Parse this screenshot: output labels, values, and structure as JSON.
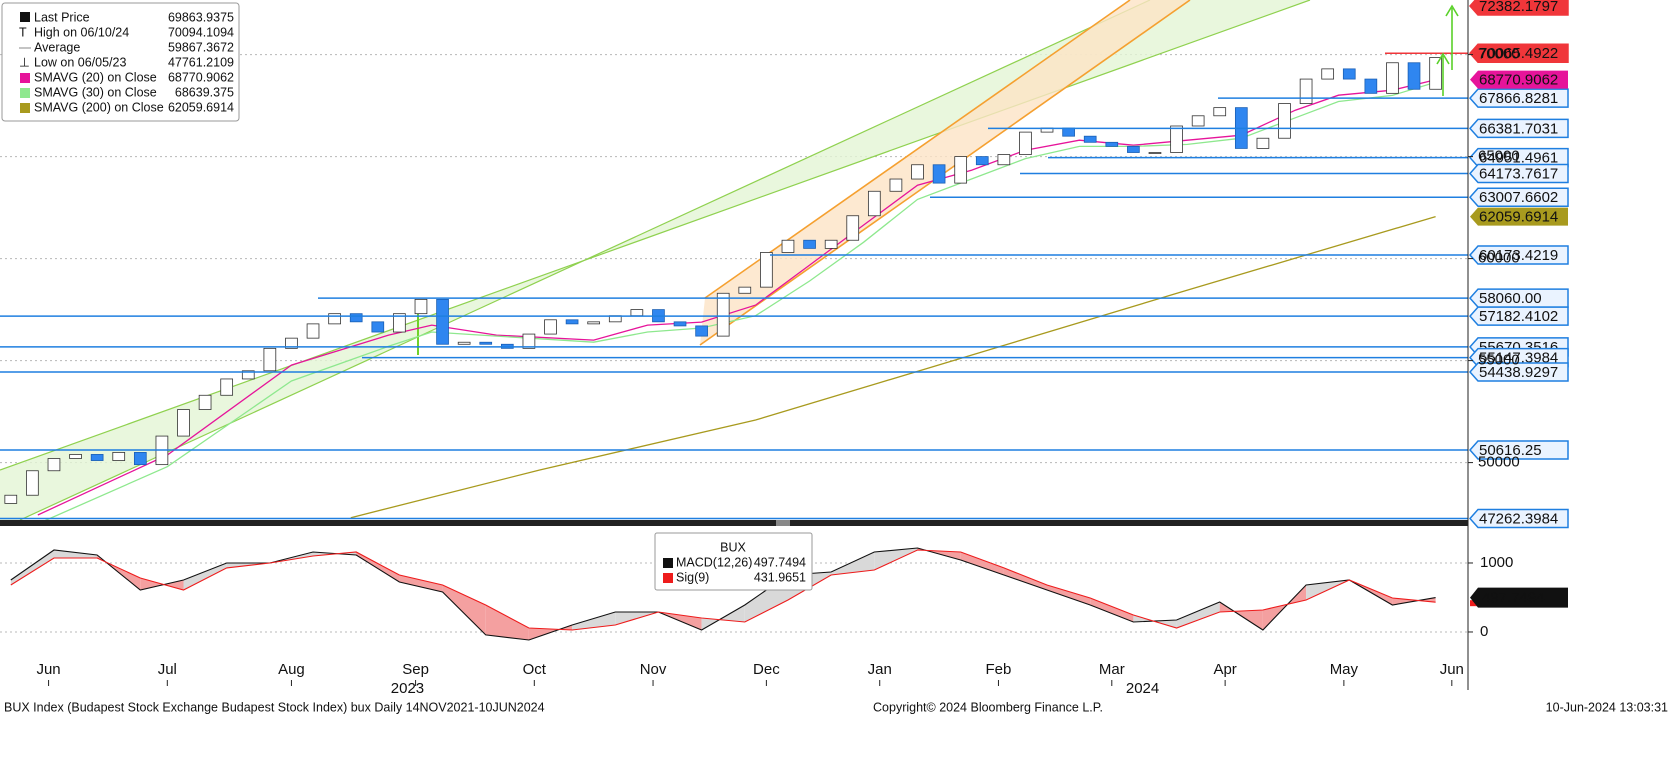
{
  "chart_data": [
    {
      "type": "candlestick",
      "stats": [
        {
          "name": "Last Price",
          "value": 69863.9375
        },
        {
          "name": "High on 06/10/24",
          "value": 70094.1094
        },
        {
          "name": "Average",
          "value": 59867.3672
        },
        {
          "name": "Low on 06/05/23",
          "value": 47761.2109
        }
      ],
      "x": [
        2,
        6,
        10,
        14,
        18,
        22,
        26,
        30,
        34,
        38,
        42,
        46,
        50,
        54,
        58,
        62,
        66,
        70,
        74,
        78,
        82,
        86,
        90,
        94,
        98,
        102,
        106,
        110,
        114,
        118,
        122,
        126,
        130,
        134,
        138,
        142,
        146,
        150,
        154,
        158,
        162,
        166,
        170,
        174,
        178,
        182,
        186,
        190,
        194,
        198,
        202,
        206,
        210,
        214,
        218,
        222,
        226,
        230,
        234,
        238,
        242,
        246,
        250,
        254,
        258,
        262,
        266
      ],
      "open": [
        48000,
        48400,
        49600,
        50200,
        50400,
        50100,
        50500,
        49900,
        51300,
        52600,
        53300,
        54100,
        54500,
        55600,
        56100,
        56800,
        57300,
        56900,
        56400,
        57300,
        58000,
        55800,
        55900,
        55800,
        55600,
        56300,
        57000,
        56800,
        56900,
        57200,
        57500,
        56900,
        56700,
        56200,
        58300,
        58600,
        60300,
        60900,
        60500,
        60900,
        62100,
        63300,
        63900,
        64600,
        63700,
        65000,
        64600,
        65100,
        66200,
        66400,
        66000,
        65700,
        65500,
        65200,
        65200,
        66500,
        67000,
        67400,
        65400,
        65900,
        67600,
        68800,
        69300,
        68800,
        68100,
        69600,
        68300
      ],
      "close": [
        48400,
        49600,
        50200,
        50400,
        50100,
        50500,
        49900,
        51300,
        52600,
        53300,
        54100,
        54500,
        55600,
        56100,
        56800,
        57300,
        56900,
        56400,
        57300,
        58000,
        55800,
        55900,
        55800,
        55600,
        56300,
        57000,
        56800,
        56900,
        57200,
        57500,
        56900,
        56700,
        56200,
        58300,
        58600,
        60300,
        60900,
        60500,
        60900,
        62100,
        63300,
        63900,
        64600,
        63700,
        65000,
        64600,
        65100,
        66200,
        66400,
        66000,
        65700,
        65500,
        65200,
        65200,
        66500,
        67000,
        67400,
        65400,
        65900,
        67600,
        68800,
        69300,
        68800,
        68100,
        69600,
        68300,
        69860
      ],
      "up_color": "#ffffff",
      "down_color": "#2f86f0",
      "series": [
        {
          "name": "SMAVG (20)  on Close",
          "color": "#e6149a",
          "legend_value": 68770.9062,
          "x": [
            7,
            31,
            54,
            72,
            80,
            92,
            110,
            120,
            130,
            140,
            150,
            160,
            170,
            180,
            190,
            200,
            210,
            220,
            230,
            240,
            248,
            258,
            266
          ],
          "values": [
            47431,
            50371,
            54780,
            56250,
            56740,
            56250,
            56005,
            56740,
            56887,
            57720,
            59680,
            61640,
            63600,
            64335,
            65315,
            65805,
            65560,
            65805,
            66050,
            67275,
            68010,
            68255,
            68770.9062
          ]
        },
        {
          "name": "SMAVG (30)  on Close",
          "color": "#8ee88e",
          "legend_value": 68639.375,
          "x": [
            7,
            31,
            54,
            72,
            80,
            92,
            110,
            120,
            130,
            140,
            150,
            160,
            170,
            180,
            190,
            200,
            210,
            220,
            230,
            240,
            248,
            258,
            266
          ],
          "values": [
            47000,
            49800,
            54000,
            55700,
            56400,
            56200,
            55900,
            56400,
            56600,
            57200,
            58900,
            60800,
            62900,
            63900,
            64900,
            65500,
            65500,
            65600,
            65900,
            66900,
            67700,
            68000,
            68639.375
          ]
        },
        {
          "name": "SMAVG (200)  on Close",
          "color": "#a89a1e",
          "legend_value": 62059.6914,
          "x": [
            65,
            100,
            140,
            180,
            220,
            266
          ],
          "values": [
            47300,
            49636,
            52086,
            55270,
            58455,
            62059.6914
          ]
        }
      ],
      "levels": [
        {
          "value": 72382.1797,
          "color": "#f0363a"
        },
        {
          "value": 70065.4922,
          "color": "#f0363a"
        },
        {
          "value": 67866.8281,
          "color": "#1f7fe0"
        },
        {
          "value": 66381.7031,
          "color": "#1f7fe0"
        },
        {
          "value": 64951.4961,
          "color": "#1f7fe0"
        },
        {
          "value": 64173.7617,
          "color": "#1f7fe0"
        },
        {
          "value": 63007.6602,
          "color": "#1f7fe0"
        },
        {
          "value": 60173.4219,
          "color": "#1f7fe0"
        },
        {
          "value": 58060,
          "label": "58060.00",
          "color": "#1f7fe0"
        },
        {
          "value": 57182.4102,
          "color": "#1f7fe0"
        },
        {
          "value": 55670.3516,
          "color": "#1f7fe0"
        },
        {
          "value": 55147.3984,
          "color": "#1f7fe0"
        },
        {
          "value": 54438.9297,
          "color": "#1f7fe0"
        },
        {
          "value": 50616.25,
          "color": "#1f7fe0"
        },
        {
          "value": 47262.3984,
          "color": "#1f7fe0"
        }
      ],
      "xlim": [
        0,
        272
      ],
      "ylim": [
        47186,
        72676
      ],
      "yticks": [
        50000,
        55000,
        60000,
        65000,
        70000
      ],
      "xticks": [
        {
          "value": 9,
          "label": "Jun"
        },
        {
          "value": 31,
          "label": "Jul"
        },
        {
          "value": 54,
          "label": "Aug"
        },
        {
          "value": 77,
          "label": "Sep"
        },
        {
          "value": 99,
          "label": "Oct"
        },
        {
          "value": 121,
          "label": "Nov"
        },
        {
          "value": 142,
          "label": "Dec"
        },
        {
          "value": 163,
          "label": "Jan"
        },
        {
          "value": 185,
          "label": "Feb"
        },
        {
          "value": 206,
          "label": "Mar"
        },
        {
          "value": 227,
          "label": "Apr"
        },
        {
          "value": 249,
          "label": "May"
        },
        {
          "value": 269,
          "label": "Jun"
        }
      ],
      "year_ticks": [
        {
          "value": 75.5,
          "label": "2023"
        },
        {
          "value": 211.7,
          "label": "2024"
        }
      ],
      "grid": true
    },
    {
      "type": "macd",
      "title": "BUX",
      "x": [
        2,
        10,
        18,
        26,
        34,
        42,
        50,
        58,
        66,
        74,
        82,
        90,
        98,
        106,
        114,
        122,
        130,
        138,
        146,
        154,
        162,
        170,
        178,
        186,
        194,
        202,
        210,
        218,
        226,
        234,
        242,
        250,
        258,
        266
      ],
      "series": [
        {
          "name": "MACD(12,26)",
          "color": "#111111",
          "legend_value": 497.7494,
          "values": [
            754,
            1188,
            1116,
            609,
            754,
            1000,
            1000,
            1159,
            1116,
            725,
            580,
            -43,
            -116,
            101,
            290,
            290,
            29,
            391,
            826,
            870,
            1159,
            1217,
            1043,
            826,
            609,
            391,
            145,
            174,
            435,
            29,
            681,
            754,
            391,
            497.7494
          ]
        },
        {
          "name": "Sig(9)",
          "color": "#ee1c1c",
          "legend_value": 431.9651,
          "values": [
            681,
            1072,
            1072,
            783,
            609,
            928,
            1000,
            1101,
            1159,
            826,
            681,
            391,
            58,
            29,
            101,
            290,
            203,
            145,
            464,
            826,
            899,
            1188,
            1159,
            928,
            681,
            493,
            246,
            58,
            290,
            319,
            464,
            754,
            493,
            431.9651
          ]
        }
      ],
      "fill_above_color": "#d9d9d9",
      "fill_below_color": "#f4a0a0",
      "ylim": [
        -696,
        1507
      ],
      "yticks": [
        0,
        1000
      ],
      "grid": true
    }
  ],
  "footer": {
    "left": "BUX Index (Budapest Stock Exchange Budapest Stock Index) bux  Daily 14NOV2021-10JUN2024",
    "center": "Copyright© 2024 Bloomberg Finance L.P.",
    "right": "10-Jun-2024 13:03:31"
  }
}
